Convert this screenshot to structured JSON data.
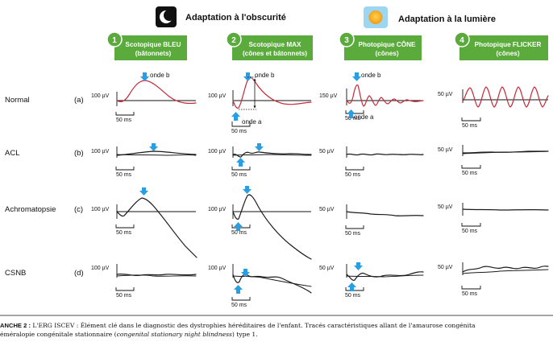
{
  "header": {
    "dark_label": "Adaptation à l'obscurité",
    "light_label": "Adaptation à la lumière",
    "dark_icon": "moon-icon",
    "light_icon": "sun-icon"
  },
  "columns": [
    {
      "num": "1",
      "line1": "Scotopique BLEU",
      "line2": "(bâtonnets)"
    },
    {
      "num": "2",
      "line1": "Scotopique MAX",
      "line2": "(cônes et bâtonnets)"
    },
    {
      "num": "3",
      "line1": "Photopique CÔNE",
      "line2": "(cônes)"
    },
    {
      "num": "4",
      "line1": "Photopique FLICKER",
      "line2": "(cônes)"
    }
  ],
  "rows": [
    {
      "name": "Normal",
      "tag": "(a)"
    },
    {
      "name": "ACL",
      "tag": "(b)"
    },
    {
      "name": "Achromatopsie",
      "tag": "(c)"
    },
    {
      "name": "CSNB",
      "tag": "(d)"
    }
  ],
  "scales": {
    "amp": [
      [
        "100 µV",
        "100 µV",
        "150 µV",
        "50 µV"
      ],
      [
        "100 µV",
        "100 µV",
        "50 µV",
        "50 µV"
      ],
      [
        "100 µV",
        "100 µV",
        "50 µV",
        "50 µV"
      ],
      [
        "100 µV",
        "100 µV",
        "50 µV",
        "50 µV"
      ]
    ],
    "time": "50 ms"
  },
  "annotations": {
    "b_wave": "onde b",
    "a_wave": "onde a"
  },
  "colors": {
    "green": "#5aaa3c",
    "blue_arrow": "#2a9ee2",
    "trace_red": "#c42a3a",
    "trace_black": "#1a1a1a"
  },
  "caption": {
    "label": "ANCHE 2 :",
    "line1": "L'ERG ISCEV : Élément clé dans le diagnostic des dystrophies héréditaires de l'enfant. Tracés caractéristiques allant de l'amaurose congénita",
    "line2_a": "éméralopie congénitale stationnaire (",
    "line2_b": "congenital stationary night blindness",
    "line2_c": ") type 1."
  }
}
